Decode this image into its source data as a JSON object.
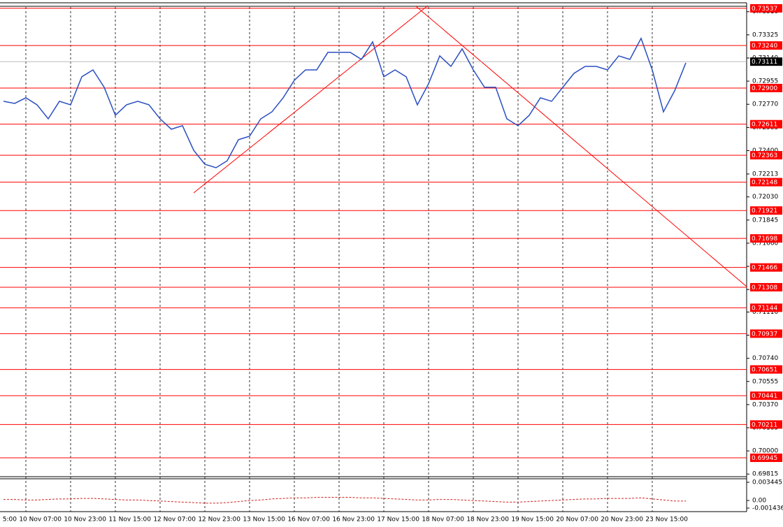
{
  "chart_data": [
    {
      "type": "line",
      "categories": [
        "5:00",
        null,
        null,
        null,
        "10 Nov 07:00",
        null,
        null,
        null,
        "10 Nov 23:00",
        null,
        null,
        null,
        "11 Nov 15:00",
        null,
        null,
        null,
        "12 Nov 07:00",
        null,
        null,
        null,
        "12 Nov 23:00",
        null,
        null,
        null,
        "13 Nov 15:00",
        null,
        null,
        null,
        "16 Nov 07:00",
        null,
        null,
        null,
        "16 Nov 23:00",
        null,
        null,
        null,
        "17 Nov 15:00",
        null,
        null,
        null,
        "18 Nov 07:00",
        null,
        null,
        null,
        "18 Nov 23:00",
        null,
        null,
        null,
        "19 Nov 15:00",
        null,
        null,
        null,
        "20 Nov 07:00",
        null,
        null,
        null,
        "20 Nov 23:00",
        null,
        null,
        null,
        "23 Nov 15:00",
        null,
        null,
        null,
        null,
        null
      ],
      "series": [
        {
          "color": "#2a4fc0",
          "values": [
            null,
            null,
            0.72794,
            0.72777,
            0.72822,
            0.72766,
            0.72654,
            0.72794,
            0.72766,
            0.7299,
            0.73045,
            0.72906,
            0.72682,
            0.72766,
            0.72794,
            0.72766,
            0.72654,
            0.72571,
            0.72599,
            0.72403,
            0.72291,
            0.72263,
            0.72319,
            0.72487,
            0.72515,
            0.72654,
            0.7271,
            0.72822,
            0.72962,
            0.73045,
            0.73045,
            0.73185,
            0.73185,
            0.73185,
            0.73129,
            0.73269,
            0.7299,
            0.73045,
            0.7299,
            0.72766,
            0.72934,
            0.73157,
            0.73073,
            0.73213,
            0.73045,
            0.72906,
            0.72906,
            0.72654,
            0.72599,
            0.72682,
            0.72822,
            0.72794,
            0.72906,
            0.73017,
            0.73073,
            0.73073,
            0.73045,
            0.73157,
            0.73129,
            0.73297,
            0.73045,
            0.7271,
            0.72878,
            0.73101,
            null,
            null
          ]
        }
      ],
      "ylim": [
        0.69794,
        0.7357
      ],
      "yticks": [
        {
          "value": 0.7351,
          "label": "0.73510"
        },
        0.73325,
        {
          "value": 0.7314,
          "label": "0.73140"
        },
        0.72955,
        {
          "value": 0.7277,
          "label": "0.72770"
        },
        0.72585,
        {
          "value": 0.724,
          "label": "0.72400"
        },
        0.72213,
        {
          "value": 0.7203,
          "label": "0.72030"
        },
        0.71845,
        {
          "value": 0.7166,
          "label": "0.71660"
        },
        0.71475,
        {
          "value": 0.7129,
          "label": "0.71290"
        },
        {
          "value": 0.7111,
          "label": "0.71110"
        },
        0.70925,
        {
          "value": 0.7074,
          "label": "0.70740"
        },
        0.70555,
        {
          "value": 0.7037,
          "label": "0.70370"
        },
        0.70185,
        {
          "value": 0.7,
          "label": "0.70000"
        },
        0.69815
      ],
      "levels": [
        0.73537,
        {
          "value": 0.7324,
          "label": "0.73240"
        },
        {
          "value": 0.729,
          "label": "0.72900"
        },
        0.72611,
        0.72363,
        0.72148,
        0.71921,
        0.71698,
        0.71466,
        0.71308,
        0.71144,
        0.70937,
        0.70651,
        0.70441,
        0.70211,
        0.69945
      ],
      "level_color": "#ff0000",
      "current_price": 0.73111
    },
    {
      "type": "line",
      "color": "#d02020",
      "values": [
        null,
        null,
        0.0002,
        0.0002,
        0.0001,
        0.0001,
        0.0002,
        0.0003,
        0.0003,
        0.0004,
        0.0004,
        0.0003,
        0.0002,
        0.0001,
        0.0001,
        0.0,
        -0.0001,
        -0.0002,
        -0.0003,
        -0.0004,
        -0.0005,
        -0.0005,
        -0.0004,
        -0.0002,
        0.0,
        0.0001,
        0.0003,
        0.0004,
        0.0005,
        0.0005,
        0.0006,
        0.0006,
        0.0006,
        0.0006,
        0.0005,
        0.0005,
        0.0004,
        0.0003,
        0.0002,
        0.0001,
        0.0001,
        0.0002,
        0.0002,
        0.0001,
        0.0,
        -0.0001,
        -0.0002,
        -0.0003,
        -0.0003,
        -0.0002,
        -0.0001,
        0.0,
        0.0001,
        0.0002,
        0.0003,
        0.0003,
        0.0004,
        0.0004,
        0.0004,
        0.0005,
        0.0003,
        0.0001,
        -0.0001,
        -0.0001,
        null,
        null
      ],
      "ylim": [
        -0.0021,
        0.00424
      ],
      "yticks": [
        0.003445,
        {
          "value": 0,
          "label": "0.00"
        },
        -0.001436
      ]
    }
  ]
}
